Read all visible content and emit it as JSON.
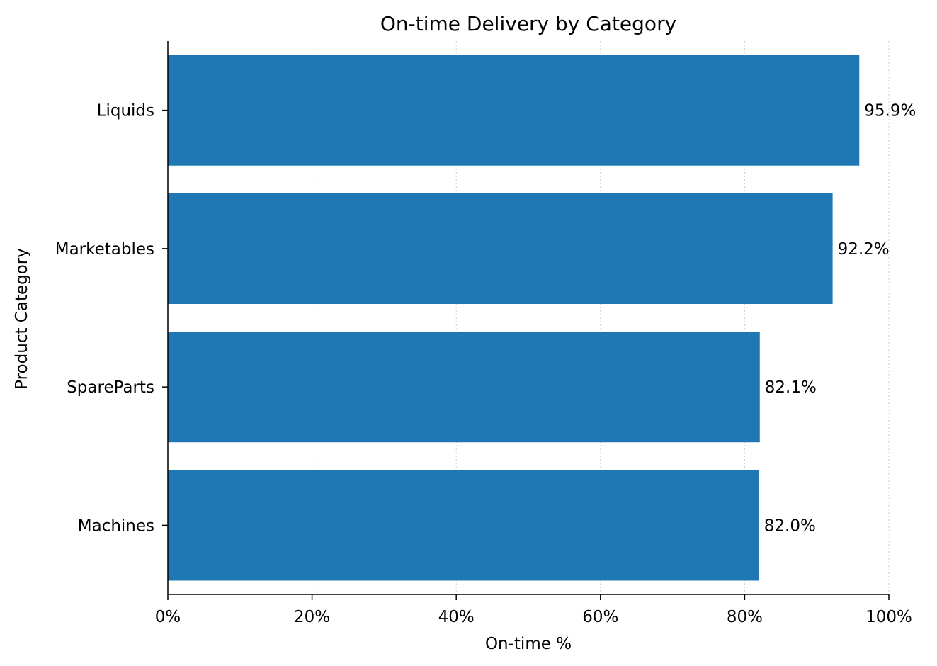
{
  "chart_data": {
    "type": "bar",
    "orientation": "horizontal",
    "title": "On-time Delivery by Category",
    "xlabel": "On-time %",
    "ylabel": "Product Category",
    "categories": [
      "Liquids",
      "Marketables",
      "SpareParts",
      "Machines"
    ],
    "values": [
      95.9,
      92.2,
      82.1,
      82.0
    ],
    "data_labels": [
      "95.9%",
      "92.2%",
      "82.1%",
      "82.0%"
    ],
    "xlim": [
      0,
      100
    ],
    "x_ticks": [
      0,
      20,
      40,
      60,
      80,
      100
    ],
    "x_tick_labels": [
      "0%",
      "20%",
      "40%",
      "60%",
      "80%",
      "100%"
    ],
    "grid": "x dotted",
    "bar_color": "#1f77b4"
  }
}
